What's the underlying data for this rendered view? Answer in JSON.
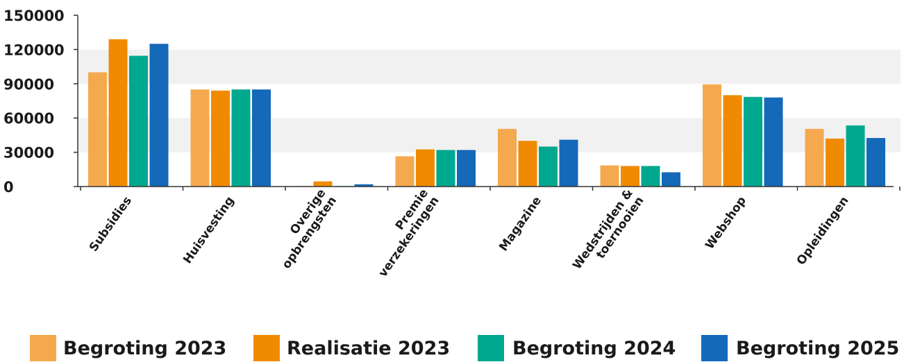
{
  "chart_data": {
    "type": "bar",
    "title": "",
    "xlabel": "",
    "ylabel": "",
    "ylim": [
      0,
      150000
    ],
    "yticks": [
      0,
      30000,
      60000,
      90000,
      120000,
      150000
    ],
    "grid": "alternating horizontal bands",
    "legend_position": "bottom",
    "categories": [
      [
        "Subsidies"
      ],
      [
        "Huisvesting"
      ],
      [
        "Overige",
        "opbrengsten"
      ],
      [
        "Premie",
        "verzekeringen"
      ],
      [
        "Magazine"
      ],
      [
        "Wedstrijden &",
        "toernooien"
      ],
      [
        "Webshop"
      ],
      [
        "Opleidingen"
      ]
    ],
    "series": [
      {
        "name": "Begroting 2023",
        "color": "#f5a94f",
        "values": [
          100000,
          85000,
          500,
          26500,
          50500,
          18500,
          89500,
          50500
        ]
      },
      {
        "name": "Realisatie 2023",
        "color": "#f08a00",
        "values": [
          129000,
          84000,
          4500,
          32500,
          40000,
          18000,
          80000,
          42000
        ]
      },
      {
        "name": "Begroting 2024",
        "color": "#00a88f",
        "values": [
          114500,
          85000,
          500,
          32000,
          35000,
          18000,
          78500,
          53500
        ]
      },
      {
        "name": "Begroting 2025",
        "color": "#1469b8",
        "values": [
          125000,
          85000,
          2000,
          32000,
          41000,
          12500,
          78000,
          42500
        ]
      }
    ]
  }
}
